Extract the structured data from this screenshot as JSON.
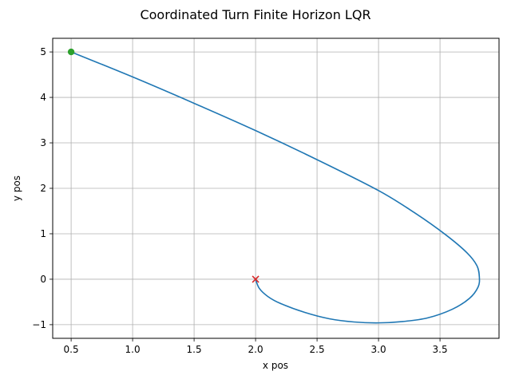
{
  "chart_data": {
    "type": "line",
    "title": "Coordinated Turn Finite Horizon LQR",
    "xlabel": "x pos",
    "ylabel": "y pos",
    "xlim": [
      0.35,
      3.98
    ],
    "ylim": [
      -1.3,
      5.3
    ],
    "xticks": [
      0.5,
      1.0,
      1.5,
      2.0,
      2.5,
      3.0,
      3.5
    ],
    "xtick_labels": [
      "0.5",
      "1.0",
      "1.5",
      "2.0",
      "2.5",
      "3.0",
      "3.5"
    ],
    "yticks": [
      -1,
      0,
      1,
      2,
      3,
      4,
      5
    ],
    "ytick_labels": [
      "−1",
      "0",
      "1",
      "2",
      "3",
      "4",
      "5"
    ],
    "grid": true,
    "series": [
      {
        "color": "#1f77b4",
        "x": [
          0.5,
          1.0,
          1.5,
          2.0,
          2.5,
          3.0,
          3.3,
          3.55,
          3.72,
          3.8,
          3.82,
          3.81,
          3.74,
          3.6,
          3.4,
          3.2,
          3.0,
          2.8,
          2.6,
          2.4,
          2.2,
          2.1,
          2.03,
          2.0
        ],
        "y": [
          5.0,
          4.45,
          3.87,
          3.27,
          2.63,
          1.95,
          1.45,
          0.97,
          0.58,
          0.3,
          0.05,
          -0.17,
          -0.42,
          -0.66,
          -0.85,
          -0.93,
          -0.96,
          -0.94,
          -0.87,
          -0.73,
          -0.53,
          -0.38,
          -0.2,
          0.0
        ]
      }
    ],
    "markers": [
      {
        "x": 0.5,
        "y": 5.0,
        "shape": "circle",
        "color": "#2ca02c"
      },
      {
        "x": 2.0,
        "y": 0.0,
        "shape": "x",
        "color": "#d62728"
      }
    ]
  }
}
